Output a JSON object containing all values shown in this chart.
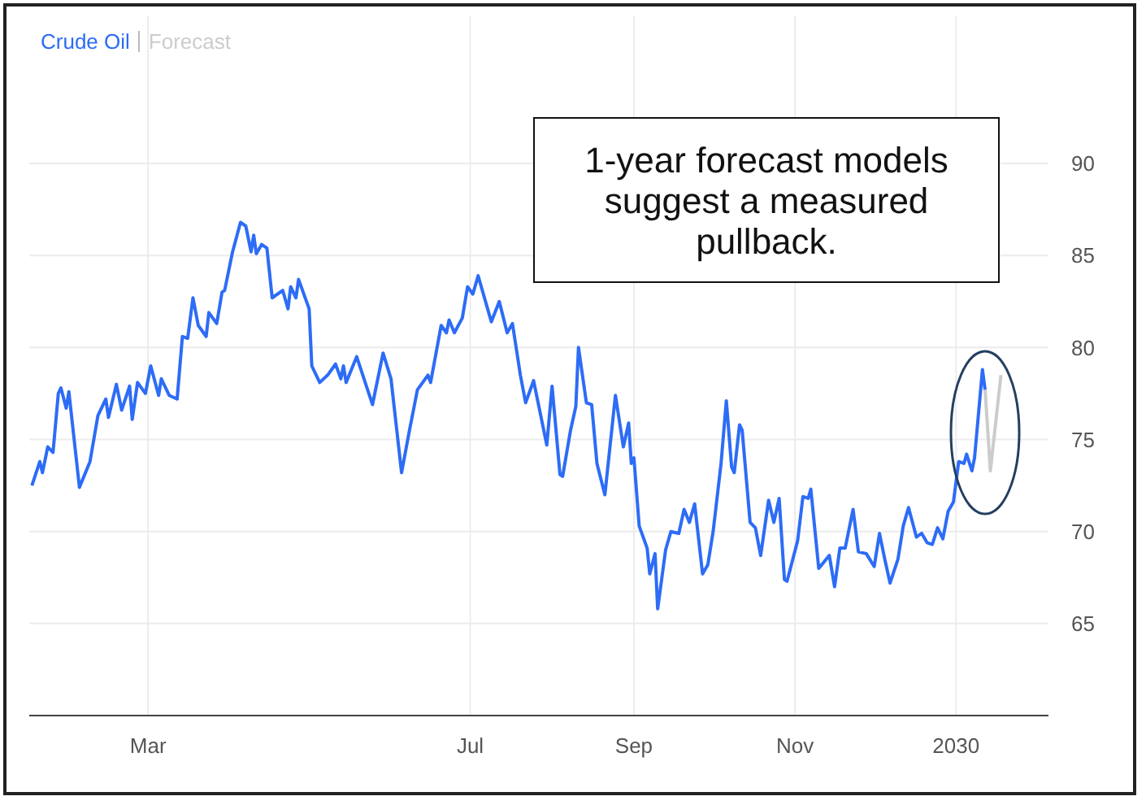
{
  "chart_data": {
    "type": "line",
    "legend": "top left",
    "grid": true,
    "xlim": [
      "2029-01-15",
      "2030-02-05"
    ],
    "xticks": [
      {
        "value": "2029-03-01",
        "label": "Mar"
      },
      {
        "value": "2029-07-01",
        "label": "Jul"
      },
      {
        "value": "2029-09-01",
        "label": "Sep"
      },
      {
        "value": "2029-11-01",
        "label": "Nov"
      },
      {
        "value": "2030-01-01",
        "label": "2030"
      }
    ],
    "ylim": [
      60,
      98
    ],
    "yticks": [
      65,
      70,
      75,
      80,
      85,
      90
    ],
    "annotations": [
      "1-year forecast models suggest a measured pullback."
    ],
    "series": [
      {
        "name": "Crude Oil",
        "color": "#2d6cf6",
        "x": [
          "2029-01-16",
          "2029-01-19",
          "2029-01-20",
          "2029-01-22",
          "2029-01-24",
          "2029-01-26",
          "2029-01-27",
          "2029-01-29",
          "2029-01-30",
          "2029-02-03",
          "2029-02-07",
          "2029-02-10",
          "2029-02-13",
          "2029-02-14",
          "2029-02-17",
          "2029-02-19",
          "2029-02-22",
          "2029-02-23",
          "2029-02-25",
          "2029-02-28",
          "2029-03-02",
          "2029-03-05",
          "2029-03-06",
          "2029-03-09",
          "2029-03-12",
          "2029-03-14",
          "2029-03-16",
          "2029-03-18",
          "2029-03-20",
          "2029-03-23",
          "2029-03-24",
          "2029-03-27",
          "2029-03-29",
          "2029-03-30",
          "2029-04-02",
          "2029-04-05",
          "2029-04-07",
          "2029-04-09",
          "2029-04-10",
          "2029-04-11",
          "2029-04-13",
          "2029-04-15",
          "2029-04-17",
          "2029-04-21",
          "2029-04-23",
          "2029-04-24",
          "2029-04-26",
          "2029-04-27",
          "2029-05-01",
          "2029-05-02",
          "2029-05-05",
          "2029-05-08",
          "2029-05-11",
          "2029-05-13",
          "2029-05-14",
          "2029-05-15",
          "2029-05-19",
          "2029-05-25",
          "2029-05-29",
          "2029-06-01",
          "2029-06-05",
          "2029-06-08",
          "2029-06-11",
          "2029-06-15",
          "2029-06-16",
          "2029-06-20",
          "2029-06-22",
          "2029-06-23",
          "2029-06-25",
          "2029-06-28",
          "2029-06-30",
          "2029-07-02",
          "2029-07-04",
          "2029-07-09",
          "2029-07-12",
          "2029-07-15",
          "2029-07-17",
          "2029-07-20",
          "2029-07-22",
          "2029-07-25",
          "2029-07-30",
          "2029-08-01",
          "2029-08-04",
          "2029-08-05",
          "2029-08-08",
          "2029-08-10",
          "2029-08-11",
          "2029-08-14",
          "2029-08-16",
          "2029-08-18",
          "2029-08-21",
          "2029-08-25",
          "2029-08-28",
          "2029-08-30",
          "2029-08-31",
          "2029-09-01",
          "2029-09-03",
          "2029-09-06",
          "2029-09-07",
          "2029-09-09",
          "2029-09-10",
          "2029-09-13",
          "2029-09-15",
          "2029-09-18",
          "2029-09-20",
          "2029-09-22",
          "2029-09-24",
          "2029-09-27",
          "2029-09-29",
          "2029-10-01",
          "2029-10-04",
          "2029-10-06",
          "2029-10-08",
          "2029-10-09",
          "2029-10-11",
          "2029-10-12",
          "2029-10-15",
          "2029-10-17",
          "2029-10-19",
          "2029-10-22",
          "2029-10-24",
          "2029-10-26",
          "2029-10-28",
          "2029-10-29",
          "2029-11-02",
          "2029-11-04",
          "2029-11-06",
          "2029-11-07",
          "2029-11-10",
          "2029-11-14",
          "2029-11-16",
          "2029-11-18",
          "2029-11-20",
          "2029-11-23",
          "2029-11-25",
          "2029-11-28",
          "2029-12-01",
          "2029-12-03",
          "2029-12-05",
          "2029-12-07",
          "2029-12-10",
          "2029-12-12",
          "2029-12-14",
          "2029-12-17",
          "2029-12-19",
          "2029-12-21",
          "2029-12-23",
          "2029-12-25",
          "2029-12-27",
          "2029-12-29",
          "2029-12-31",
          "2030-01-02",
          "2030-01-04",
          "2030-01-05",
          "2030-01-07",
          "2030-01-08",
          "2030-01-11",
          "2030-01-12"
        ],
        "values": [
          72.5,
          73.8,
          73.2,
          74.6,
          74.3,
          77.5,
          77.8,
          76.7,
          77.6,
          72.4,
          73.8,
          76.3,
          77.2,
          76.2,
          78.0,
          76.6,
          77.9,
          76.1,
          78.1,
          77.5,
          79.0,
          77.4,
          78.3,
          77.4,
          77.2,
          80.6,
          80.5,
          82.7,
          81.2,
          80.6,
          81.9,
          81.3,
          83.0,
          83.1,
          85.2,
          86.8,
          86.6,
          85.2,
          86.1,
          85.1,
          85.6,
          85.4,
          82.7,
          83.1,
          82.1,
          83.3,
          82.7,
          83.7,
          82.1,
          79.0,
          78.1,
          78.5,
          79.1,
          78.3,
          79.0,
          78.1,
          79.5,
          76.9,
          79.7,
          78.3,
          73.2,
          75.5,
          77.7,
          78.5,
          78.1,
          81.2,
          80.8,
          81.5,
          80.8,
          81.6,
          83.3,
          82.9,
          83.9,
          81.4,
          82.5,
          80.8,
          81.3,
          78.5,
          77.0,
          78.2,
          74.7,
          77.9,
          73.1,
          73.0,
          75.5,
          76.8,
          80.0,
          77.0,
          76.9,
          73.7,
          72.0,
          77.4,
          74.6,
          75.9,
          73.7,
          74.0,
          70.3,
          69.1,
          67.7,
          68.8,
          65.8,
          69.0,
          70.0,
          69.9,
          71.2,
          70.5,
          71.5,
          67.7,
          68.2,
          70.0,
          73.7,
          77.1,
          73.5,
          73.2,
          75.8,
          75.5,
          70.5,
          70.2,
          68.7,
          71.7,
          70.5,
          71.8,
          67.4,
          67.3,
          69.5,
          71.9,
          71.8,
          72.3,
          68.0,
          68.7,
          67.0,
          69.1,
          69.1,
          71.2,
          68.9,
          68.8,
          68.1,
          69.9,
          68.5,
          67.2,
          68.5,
          70.3,
          71.3,
          69.7,
          69.9,
          69.4,
          69.3,
          70.2,
          69.6,
          71.1,
          71.6,
          73.8,
          73.7,
          74.2,
          73.3,
          74.0,
          78.8,
          77.7
        ]
      },
      {
        "name": "Forecast",
        "color": "#cccccc",
        "x": [
          "2030-01-12",
          "2030-01-14",
          "2030-01-18"
        ],
        "values": [
          77.7,
          73.3,
          78.5
        ]
      }
    ]
  }
}
